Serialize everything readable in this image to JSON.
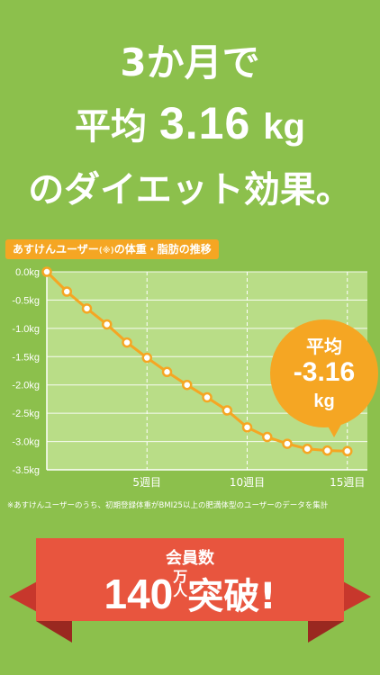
{
  "headline": {
    "line1": "3か月で",
    "line2_prefix": "平均",
    "line2_value": "3.16",
    "line2_unit": "kg",
    "line3": "のダイエット効果。"
  },
  "chart_title": {
    "main": "あすけんユーザー",
    "note_mark": "(※)",
    "suffix": "の体重・脂肪の推移"
  },
  "chart_data": {
    "type": "line",
    "y_tick_labels": [
      "0.0kg",
      "-0.5kg",
      "-1.0kg",
      "-1.5kg",
      "-2.0kg",
      "-2.5kg",
      "-3.0kg",
      "-3.5kg"
    ],
    "x_tick_labels": [
      "5週目",
      "10週目",
      "15週目"
    ],
    "x_ticks": [
      5,
      10,
      15
    ],
    "ylim": [
      -3.5,
      0
    ],
    "xlim": [
      0,
      16
    ],
    "grid": true,
    "series": [
      {
        "x": [
          0,
          1,
          2,
          3,
          4,
          5,
          6,
          7,
          8,
          9,
          10,
          11,
          12,
          13,
          14,
          15
        ],
        "values": [
          0.0,
          -0.35,
          -0.65,
          -0.93,
          -1.25,
          -1.52,
          -1.77,
          -2.0,
          -2.22,
          -2.45,
          -2.75,
          -2.92,
          -3.04,
          -3.13,
          -3.16,
          -3.17
        ]
      }
    ],
    "colors": {
      "line": "#f5a623",
      "plot_bg": "#b9dd87",
      "axis": "#ffffff"
    }
  },
  "bubble": {
    "label": "平均",
    "value": "-3.16",
    "unit": "kg"
  },
  "footnote": "※あすけんユーザーのうち、初期登録体重がBMI25以上の肥満体型のユーザーのデータを集計",
  "ribbon": {
    "line1": "会員数",
    "number": "140",
    "unit_top": "万",
    "unit_bottom": "人",
    "suffix": "突破!"
  }
}
